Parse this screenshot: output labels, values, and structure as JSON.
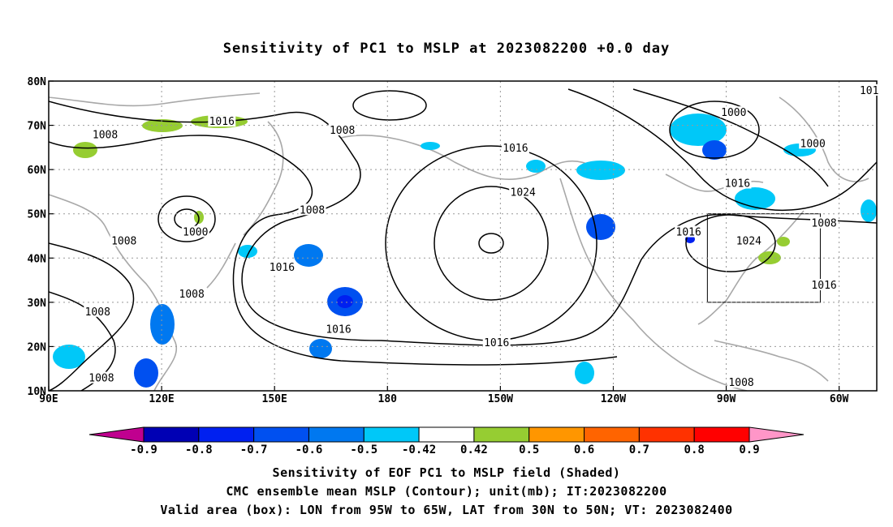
{
  "title": "Sensitivity of PC1 to MSLP at 2023082200 +0.0 day",
  "map": {
    "lon_labels": [
      "90E",
      "120E",
      "150E",
      "180",
      "150W",
      "120W",
      "90W",
      "60W"
    ],
    "lat_labels": [
      "80N",
      "70N",
      "60N",
      "50N",
      "40N",
      "30N",
      "20N",
      "10N"
    ],
    "lon_range": [
      90,
      310
    ],
    "lat_range": [
      10,
      80
    ],
    "valid_box": {
      "lon": [
        265,
        295
      ],
      "lat": [
        30,
        50
      ]
    },
    "contour_labels": [
      {
        "text": "1016",
        "lon": 136,
        "lat": 71
      },
      {
        "text": "1008",
        "lon": 168,
        "lat": 69
      },
      {
        "text": "1008",
        "lon": 105,
        "lat": 68
      },
      {
        "text": "1016",
        "lon": 214,
        "lat": 65
      },
      {
        "text": "1000",
        "lon": 272,
        "lat": 73
      },
      {
        "text": "1000",
        "lon": 293,
        "lat": 66
      },
      {
        "text": "1016",
        "lon": 273,
        "lat": 57
      },
      {
        "text": "1024",
        "lon": 216,
        "lat": 55
      },
      {
        "text": "1008",
        "lon": 160,
        "lat": 51
      },
      {
        "text": "1008",
        "lon": 296,
        "lat": 48
      },
      {
        "text": "1000",
        "lon": 129,
        "lat": 46
      },
      {
        "text": "1008",
        "lon": 110,
        "lat": 44
      },
      {
        "text": "1016",
        "lon": 260,
        "lat": 46
      },
      {
        "text": "1024",
        "lon": 276,
        "lat": 44
      },
      {
        "text": "1016",
        "lon": 152,
        "lat": 38
      },
      {
        "text": "1016",
        "lon": 296,
        "lat": 34
      },
      {
        "text": "1008",
        "lon": 128,
        "lat": 32
      },
      {
        "text": "1008",
        "lon": 103,
        "lat": 28
      },
      {
        "text": "1016",
        "lon": 167,
        "lat": 24
      },
      {
        "text": "1016",
        "lon": 209,
        "lat": 21
      },
      {
        "text": "1008",
        "lon": 104,
        "lat": 13
      },
      {
        "text": "1008",
        "lon": 274,
        "lat": 12
      },
      {
        "text": "101",
        "lon": 308,
        "lat": 78
      }
    ]
  },
  "colorbar": {
    "labels": [
      "-0.9",
      "-0.8",
      "-0.7",
      "-0.6",
      "-0.5",
      "-0.42",
      "0.42",
      "0.5",
      "0.6",
      "0.7",
      "0.8",
      "0.9"
    ],
    "colors": [
      "#c0008f",
      "#0000b4",
      "#0020f0",
      "#0050f0",
      "#0078f0",
      "#00c8f8",
      "#ffffff",
      "#96cd32",
      "#ff9600",
      "#ff6400",
      "#ff3200",
      "#ff0000",
      "#ff96c8"
    ]
  },
  "captions": {
    "line1": "Sensitivity of EOF PC1 to MSLP field (Shaded)",
    "line2": "CMC ensemble mean MSLP (Contour); unit(mb); IT:2023082200",
    "line3": "Valid area (box): LON from 95W to 65W, LAT from 30N to 50N; VT: 2023082400"
  }
}
